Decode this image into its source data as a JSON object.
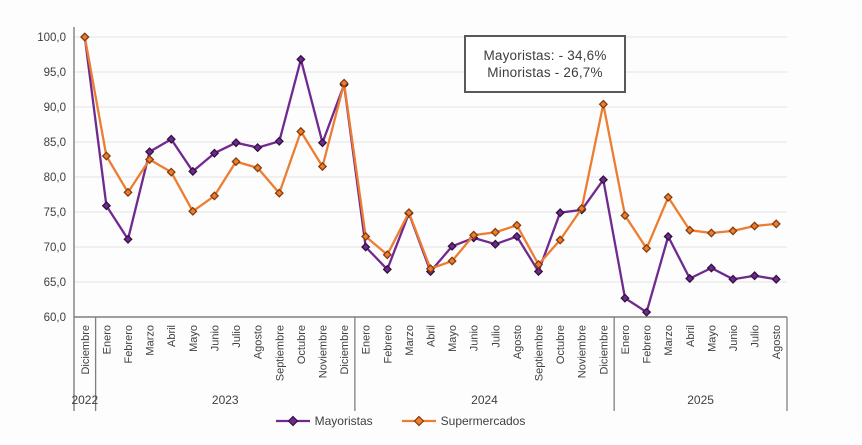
{
  "chart_data": {
    "type": "line",
    "title": "",
    "ylim": [
      60,
      100
    ],
    "ytick_step": 5,
    "decimal_comma": true,
    "grid": true,
    "legend_position": "bottom-center",
    "x_groups": [
      {
        "year": "2022",
        "months": [
          "Diciembre"
        ]
      },
      {
        "year": "2023",
        "months": [
          "Enero",
          "Febrero",
          "Marzo",
          "Abril",
          "Mayo",
          "Junio",
          "Julio",
          "Agosto",
          "Septiembre",
          "Octubre",
          "Noviembre",
          "Diciembre"
        ]
      },
      {
        "year": "2024",
        "months": [
          "Enero",
          "Febrero",
          "Marzo",
          "Abril",
          "Mayo",
          "Junio",
          "Julio",
          "Agosto",
          "Septiembre",
          "Octubre",
          "Noviembre",
          "Diciembre"
        ]
      },
      {
        "year": "2025",
        "months": [
          "Enero",
          "Febrero",
          "Marzo",
          "Abril",
          "Mayo",
          "Junio",
          "Julio",
          "Agosto"
        ]
      }
    ],
    "series": [
      {
        "name": "Mayoristas",
        "color": "#70298f",
        "marker_border": "#31123f",
        "values": [
          100.0,
          75.9,
          71.1,
          83.6,
          85.4,
          80.8,
          83.4,
          84.9,
          84.2,
          85.1,
          96.8,
          84.9,
          93.2,
          70.0,
          66.8,
          74.8,
          66.5,
          70.1,
          71.3,
          70.4,
          71.5,
          66.5,
          74.9,
          75.3,
          79.6,
          62.7,
          60.7,
          71.5,
          65.5,
          67.0,
          65.4,
          65.9,
          65.4
        ]
      },
      {
        "name": "Supermercados",
        "color": "#ed7d31",
        "marker_border": "#843c0c",
        "values": [
          100.0,
          83.0,
          77.8,
          82.5,
          80.7,
          75.1,
          77.3,
          82.2,
          81.3,
          77.7,
          86.5,
          81.5,
          93.4,
          71.5,
          68.9,
          74.9,
          66.9,
          68.0,
          71.7,
          72.1,
          73.1,
          67.5,
          71.0,
          75.5,
          90.4,
          74.5,
          69.8,
          77.1,
          72.4,
          72.0,
          72.3,
          73.0,
          73.3
        ]
      }
    ],
    "annotation": {
      "lines": [
        "Mayoristas: - 34,6%",
        "Minoristas - 26,7%"
      ]
    },
    "colors": {
      "background": "#fdfdfd",
      "gridline": "#e9e9e9",
      "axis": "#7f7f7f",
      "text": "#404040",
      "annotation_border": "#595959"
    }
  }
}
